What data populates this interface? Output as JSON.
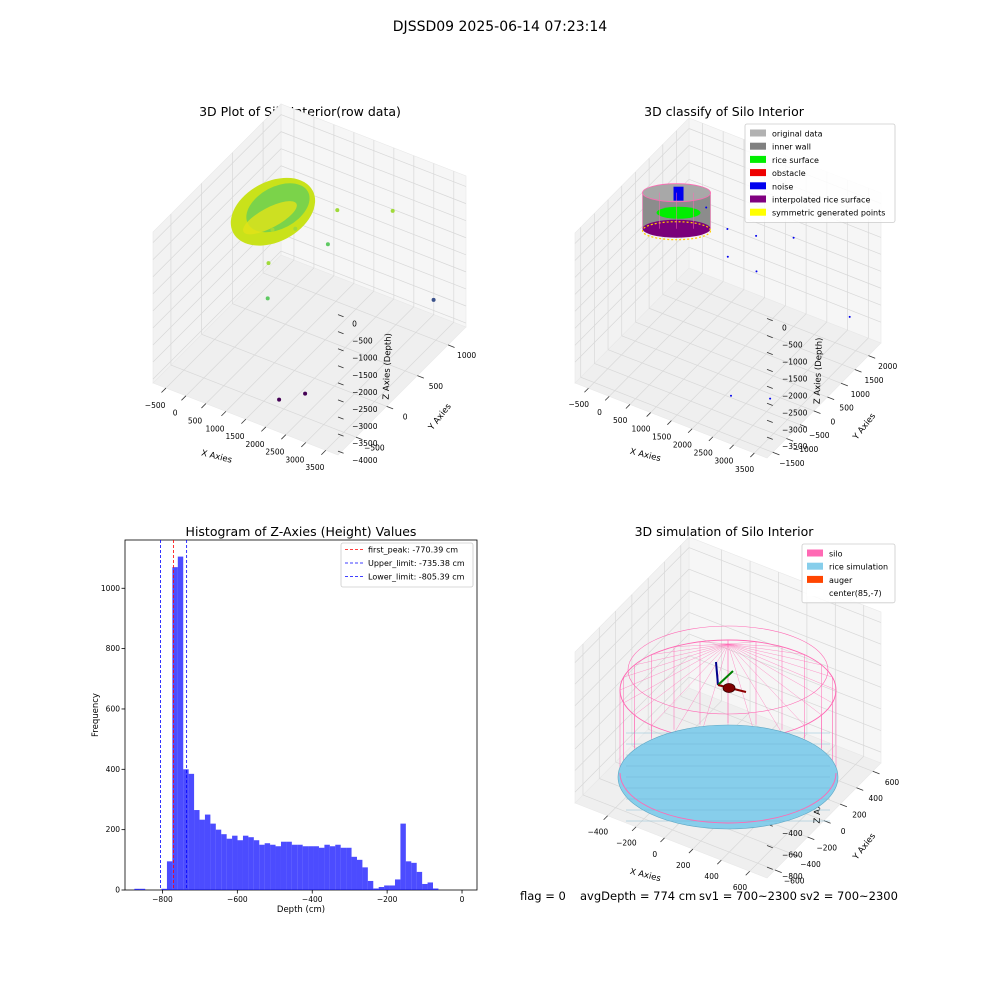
{
  "figure": {
    "suptitle": "DJSSD09 2025-06-14 07:23:14",
    "status_line": {
      "flag": "flag = 0",
      "avg_depth": "avgDepth = 774 cm",
      "sv1": "sv1 = 700~2300",
      "sv2": "sv2 = 700~2300"
    }
  },
  "chart_data": [
    {
      "type": "scatter",
      "projection": "3d",
      "title": "3D Plot of Silo Interior(row data)",
      "xlabel": "X Axies",
      "ylabel": "Y Axies",
      "zlabel": "Z Axies (Depth)",
      "x_ticks": [
        "−500",
        "0",
        "500",
        "1000",
        "1500",
        "2000",
        "2500",
        "3000",
        "3500"
      ],
      "y_ticks": [
        "−500",
        "0",
        "500",
        "1000"
      ],
      "z_ticks": [
        "0",
        "−500",
        "−1000",
        "−1500",
        "−2000",
        "−2500",
        "−3000",
        "−3500",
        "−4000"
      ],
      "xlim": [
        -600,
        3600
      ],
      "ylim": [
        -700,
        1300
      ],
      "zlim": [
        -4200,
        200
      ],
      "colormap": "viridis-like (yellow→green→purple by depth)",
      "series": [
        {
          "points": [
            {
              "x": 950,
              "y": 100,
              "z": -450
            },
            {
              "x": 1250,
              "y": 250,
              "z": -550
            },
            {
              "x": 1550,
              "y": 700,
              "z": -700
            },
            {
              "x": 1150,
              "y": -100,
              "z": -950
            },
            {
              "x": 1700,
              "y": 450,
              "z": -1150
            },
            {
              "x": 2300,
              "y": 1050,
              "z": -1000
            },
            {
              "x": 1350,
              "y": -250,
              "z": -1600
            },
            {
              "x": 3300,
              "y": 1000,
              "z": -3000
            },
            {
              "x": 1900,
              "y": -450,
              "z": -3900
            },
            {
              "x": 2200,
              "y": -250,
              "z": -3950
            }
          ]
        }
      ]
    },
    {
      "type": "scatter",
      "projection": "3d",
      "title": "3D classify of Silo Interior",
      "xlabel": "X Axies",
      "ylabel": "Y Axies",
      "zlabel": "Z Axies (Depth)",
      "x_ticks": [
        "−500",
        "0",
        "500",
        "1000",
        "1500",
        "2000",
        "2500",
        "3000",
        "3500"
      ],
      "y_ticks": [
        "−1500",
        "−1000",
        "−500",
        "0",
        "500",
        "1000",
        "1500",
        "2000"
      ],
      "z_ticks": [
        "0",
        "−500",
        "−1000",
        "−1500",
        "−2000",
        "−2500",
        "−3000",
        "−3500"
      ],
      "xlim": [
        -600,
        3600
      ],
      "ylim": [
        -1700,
        2200
      ],
      "zlim": [
        -3700,
        200
      ],
      "legend_position": "top-right",
      "legend": [
        {
          "label": "original data",
          "color": "#b2b2b2"
        },
        {
          "label": "inner wall",
          "color": "#808080"
        },
        {
          "label": "rice surface",
          "color": "#00ee00"
        },
        {
          "label": "obstacle",
          "color": "#ee0000"
        },
        {
          "label": "noise",
          "color": "#0000ee"
        },
        {
          "label": "interpolated rice surface",
          "color": "#800080"
        },
        {
          "label": "symmetric generated points",
          "color": "#ffff00"
        }
      ],
      "noise_points": [
        {
          "x": 800,
          "y": 600,
          "z": -250
        },
        {
          "x": 1200,
          "y": 700,
          "z": -700
        },
        {
          "x": 1700,
          "y": 900,
          "z": -800
        },
        {
          "x": 1400,
          "y": 400,
          "z": -1100
        },
        {
          "x": 2200,
          "y": 1400,
          "z": -1000
        },
        {
          "x": 1900,
          "y": 600,
          "z": -1400
        },
        {
          "x": 3300,
          "y": 1600,
          "z": -2700
        },
        {
          "x": 2300,
          "y": -900,
          "z": -3300
        },
        {
          "x": 2900,
          "y": -500,
          "z": -3400
        }
      ]
    },
    {
      "type": "bar",
      "title": "Histogram of Z-Axies (Height) Values",
      "xlabel": "Depth (cm)",
      "ylabel": "Frequency",
      "xlim": [
        -900,
        40
      ],
      "ylim": [
        0,
        1160
      ],
      "x_ticks": [
        -800,
        -600,
        -400,
        -200,
        0
      ],
      "y_ticks": [
        0,
        200,
        400,
        600,
        800,
        1000
      ],
      "color": "#0000ff",
      "legend_position": "top-right",
      "bin_start": -875,
      "bin_width": 14.5,
      "values": [
        4,
        4,
        0,
        0,
        0,
        4,
        95,
        1070,
        1105,
        400,
        385,
        265,
        233,
        250,
        220,
        200,
        185,
        170,
        180,
        165,
        180,
        175,
        165,
        150,
        155,
        150,
        145,
        160,
        160,
        150,
        150,
        145,
        145,
        145,
        140,
        150,
        145,
        150,
        140,
        140,
        110,
        100,
        75,
        30,
        5,
        10,
        15,
        15,
        35,
        220,
        95,
        90,
        60,
        20,
        25,
        5
      ],
      "vlines": [
        {
          "x": -770.39,
          "color": "#ff0000",
          "label": "first_peak: -770.39 cm"
        },
        {
          "x": -735.38,
          "color": "#0000ff",
          "label": "Upper_limit: -735.38 cm"
        },
        {
          "x": -805.39,
          "color": "#0000ff",
          "label": "Lower_limit: -805.39 cm"
        }
      ]
    },
    {
      "type": "scatter",
      "projection": "3d",
      "title": "3D simulation of Silo Interior",
      "xlabel": "X Axies",
      "ylabel": "Y Axies",
      "zlabel": "Z Axies (Depth)",
      "x_ticks": [
        "−400",
        "−200",
        "0",
        "200",
        "400",
        "600"
      ],
      "y_ticks": [
        "−600",
        "−400",
        "−200",
        "0",
        "200",
        "400",
        "600"
      ],
      "z_ticks": [
        "400",
        "200",
        "0",
        "−200",
        "−400",
        "−600",
        "−800"
      ],
      "xlim": [
        -650,
        700
      ],
      "ylim": [
        -700,
        700
      ],
      "zlim": [
        -900,
        500
      ],
      "legend_position": "top-right",
      "legend": [
        {
          "label": "silo",
          "color": "#ff69b4"
        },
        {
          "label": "rice simulation",
          "color": "#87ceeb"
        },
        {
          "label": "auger",
          "color": "#ff4500"
        },
        {
          "label": "center(85,-7)",
          "color": "#ffffff"
        }
      ],
      "silo_color": "#ff69b4",
      "rice_color": "#87ceeb",
      "rice_depth": -774
    }
  ]
}
